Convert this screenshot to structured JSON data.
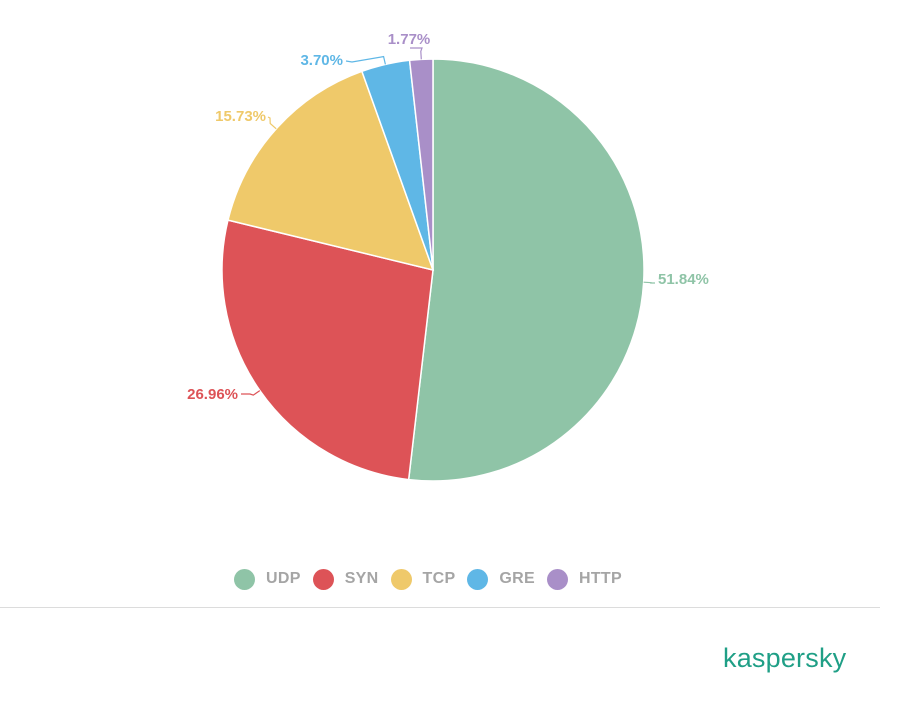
{
  "chart_data": {
    "type": "pie",
    "title": "",
    "slices": [
      {
        "name": "UDP",
        "value": 51.84,
        "label": "51.84%",
        "color": "#8fc4a7"
      },
      {
        "name": "SYN",
        "value": 26.96,
        "label": "26.96%",
        "color": "#dd5357"
      },
      {
        "name": "TCP",
        "value": 15.73,
        "label": "15.73%",
        "color": "#efc96a"
      },
      {
        "name": "GRE",
        "value": 3.7,
        "label": "3.70%",
        "color": "#5fb7e6"
      },
      {
        "name": "HTTP",
        "value": 1.77,
        "label": "1.77%",
        "color": "#a98fc8"
      }
    ],
    "legend_position": "bottom"
  },
  "brand": {
    "name": "kaspersky",
    "color": "#1f9f86"
  }
}
